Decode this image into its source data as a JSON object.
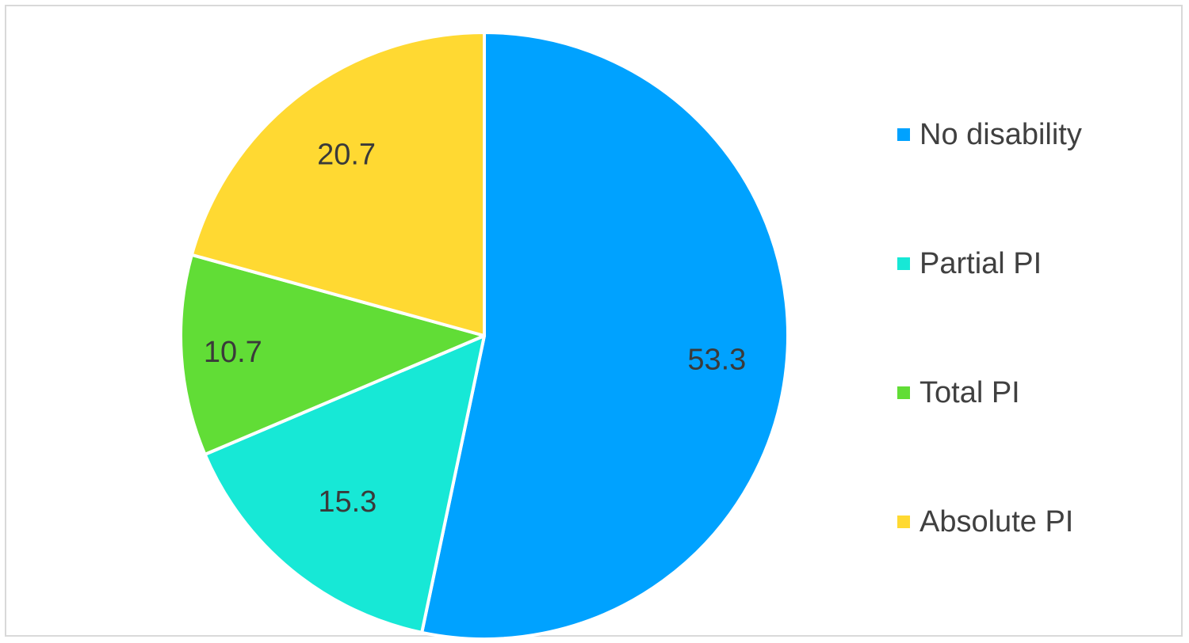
{
  "chart_data": {
    "type": "pie",
    "title": "",
    "legend_position": "right",
    "slices": [
      {
        "name": "No disability",
        "value": 53.3,
        "label": "53.3",
        "color": "#00A2FF"
      },
      {
        "name": "Partial PI",
        "value": 15.3,
        "label": "15.3",
        "color": "#17E8D6"
      },
      {
        "name": "Total PI",
        "value": 10.7,
        "label": "10.7",
        "color": "#61DD36"
      },
      {
        "name": "Absolute PI",
        "value": 20.7,
        "label": "20.7",
        "color": "#FFD932"
      }
    ]
  }
}
